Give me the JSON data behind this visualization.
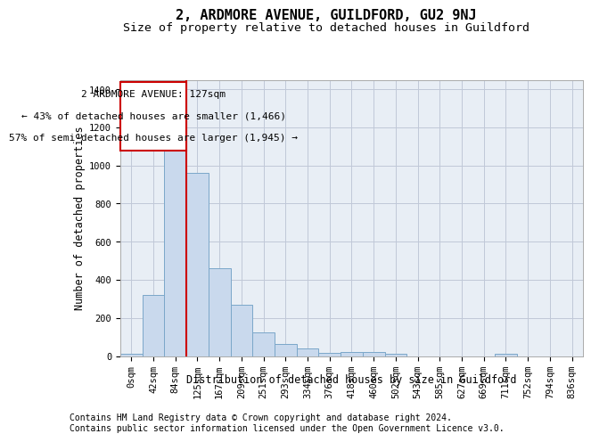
{
  "title": "2, ARDMORE AVENUE, GUILDFORD, GU2 9NJ",
  "subtitle": "Size of property relative to detached houses in Guildford",
  "xlabel": "Distribution of detached houses by size in Guildford",
  "ylabel": "Number of detached properties",
  "footer_line1": "Contains HM Land Registry data © Crown copyright and database right 2024.",
  "footer_line2": "Contains public sector information licensed under the Open Government Licence v3.0.",
  "categories": [
    "0sqm",
    "42sqm",
    "84sqm",
    "125sqm",
    "167sqm",
    "209sqm",
    "251sqm",
    "293sqm",
    "334sqm",
    "376sqm",
    "418sqm",
    "460sqm",
    "502sqm",
    "543sqm",
    "585sqm",
    "627sqm",
    "669sqm",
    "711sqm",
    "752sqm",
    "794sqm",
    "836sqm"
  ],
  "values": [
    10,
    320,
    1100,
    960,
    460,
    270,
    125,
    65,
    40,
    15,
    20,
    20,
    10,
    0,
    0,
    0,
    0,
    10,
    0,
    0,
    0
  ],
  "bar_color": "#c9d9ed",
  "bar_edge_color": "#7ba7c9",
  "grid_color": "#c0c8d8",
  "background_color": "#e8eef5",
  "annotation_box_edgecolor": "#cc0000",
  "property_label": "2 ARDMORE AVENUE: 127sqm",
  "annotation_line1": "← 43% of detached houses are smaller (1,466)",
  "annotation_line2": "57% of semi-detached houses are larger (1,945) →",
  "ylim": [
    0,
    1450
  ],
  "yticks": [
    0,
    200,
    400,
    600,
    800,
    1000,
    1200,
    1400
  ],
  "title_fontsize": 11,
  "subtitle_fontsize": 9.5,
  "label_fontsize": 8.5,
  "tick_fontsize": 7.5,
  "annotation_fontsize": 8,
  "footer_fontsize": 7,
  "red_line_index": 3
}
